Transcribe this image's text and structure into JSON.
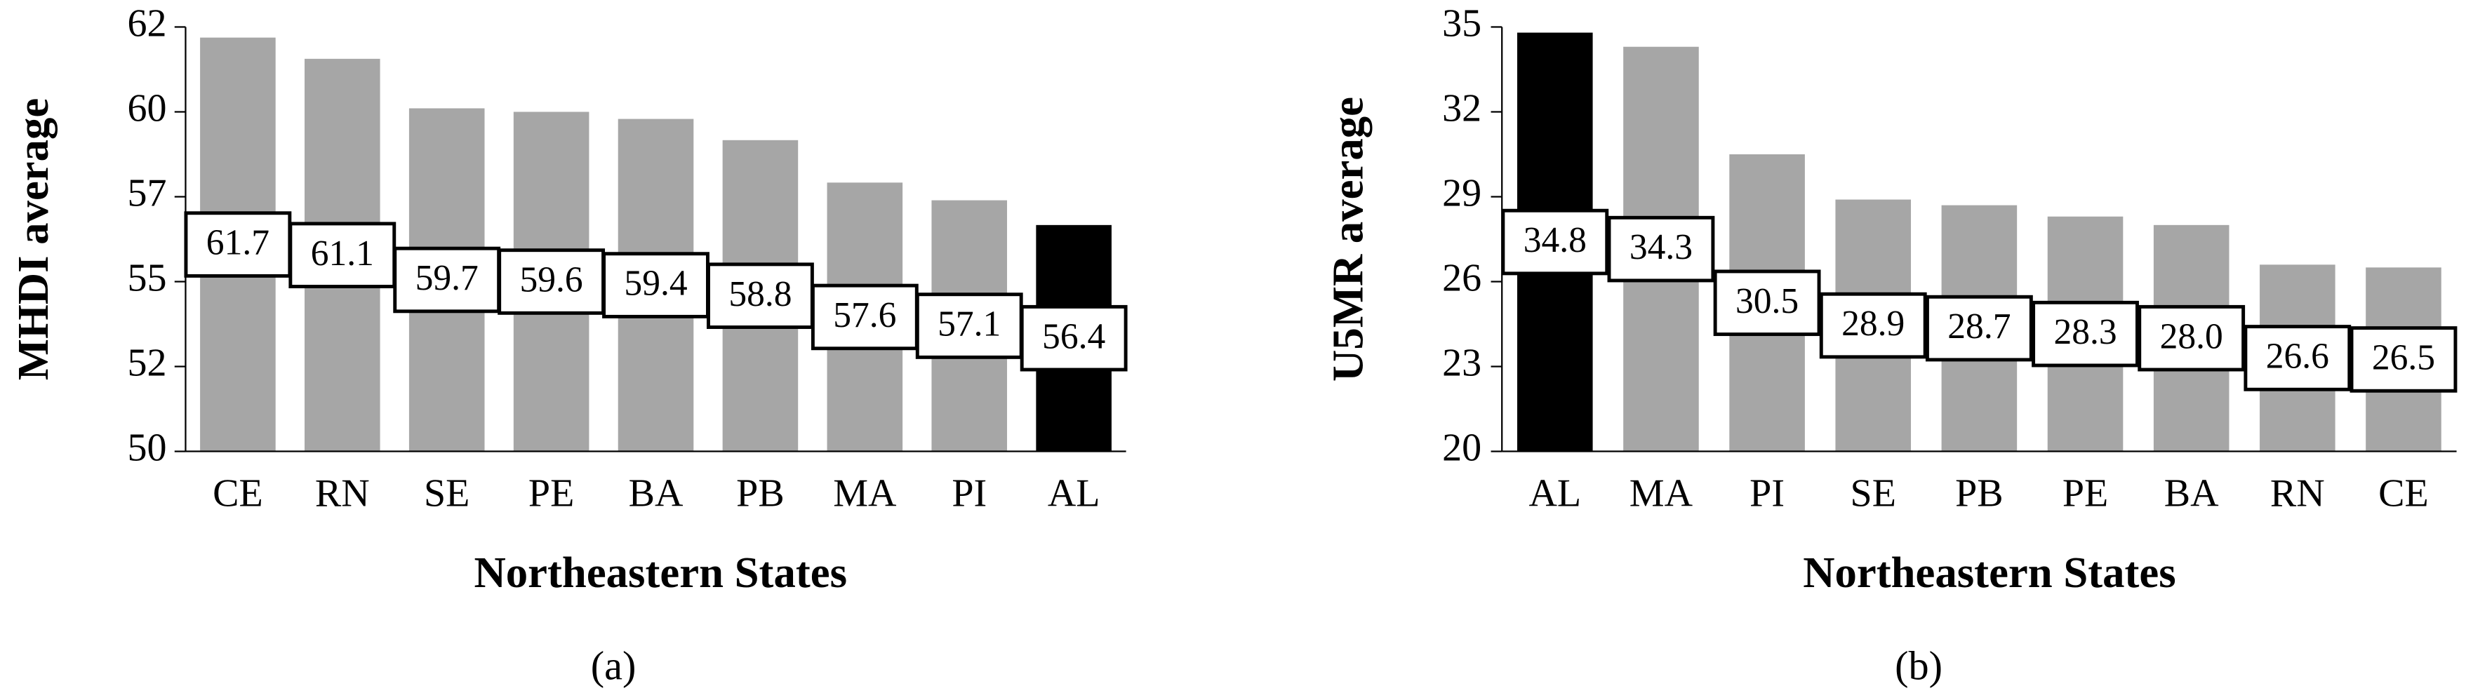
{
  "chart_data": [
    {
      "type": "bar",
      "y_label": "MHDI average",
      "x_label": "Northeastern States",
      "caption": "(a)",
      "categories": [
        "CE",
        "RN",
        "SE",
        "PE",
        "BA",
        "PB",
        "MA",
        "PI",
        "AL"
      ],
      "values": [
        61.7,
        61.1,
        59.7,
        59.6,
        59.4,
        58.8,
        57.6,
        57.1,
        56.4
      ],
      "colors": [
        "#a6a6a6",
        "#a6a6a6",
        "#a6a6a6",
        "#a6a6a6",
        "#a6a6a6",
        "#a6a6a6",
        "#a6a6a6",
        "#a6a6a6",
        "#000000"
      ],
      "ylim": [
        50,
        62
      ],
      "yticks": [
        50,
        {
          "value": 52.4,
          "label": "52"
        },
        {
          "value": 54.8,
          "label": "55"
        },
        {
          "value": 57.2,
          "label": "57"
        },
        {
          "value": 59.6,
          "label": "60"
        },
        62
      ]
    },
    {
      "type": "bar",
      "y_label": "U5MR average",
      "x_label": "Northeastern States",
      "caption": "(b)",
      "categories": [
        "AL",
        "MA",
        "PI",
        "SE",
        "PB",
        "PE",
        "BA",
        "RN",
        "CE"
      ],
      "values": [
        34.8,
        34.3,
        30.5,
        28.9,
        28.7,
        28.3,
        28.0,
        26.6,
        26.5
      ],
      "value_labels": [
        "34.8",
        "34.3",
        "30.5",
        "28.9",
        "28.7",
        "28.3",
        "28.0",
        "26.6",
        "26.5"
      ],
      "colors": [
        "#000000",
        "#a6a6a6",
        "#a6a6a6",
        "#a6a6a6",
        "#a6a6a6",
        "#a6a6a6",
        "#a6a6a6",
        "#a6a6a6",
        "#a6a6a6"
      ],
      "ylim": [
        20,
        35
      ],
      "yticks": [
        20,
        23,
        26,
        29,
        32,
        35
      ]
    }
  ]
}
